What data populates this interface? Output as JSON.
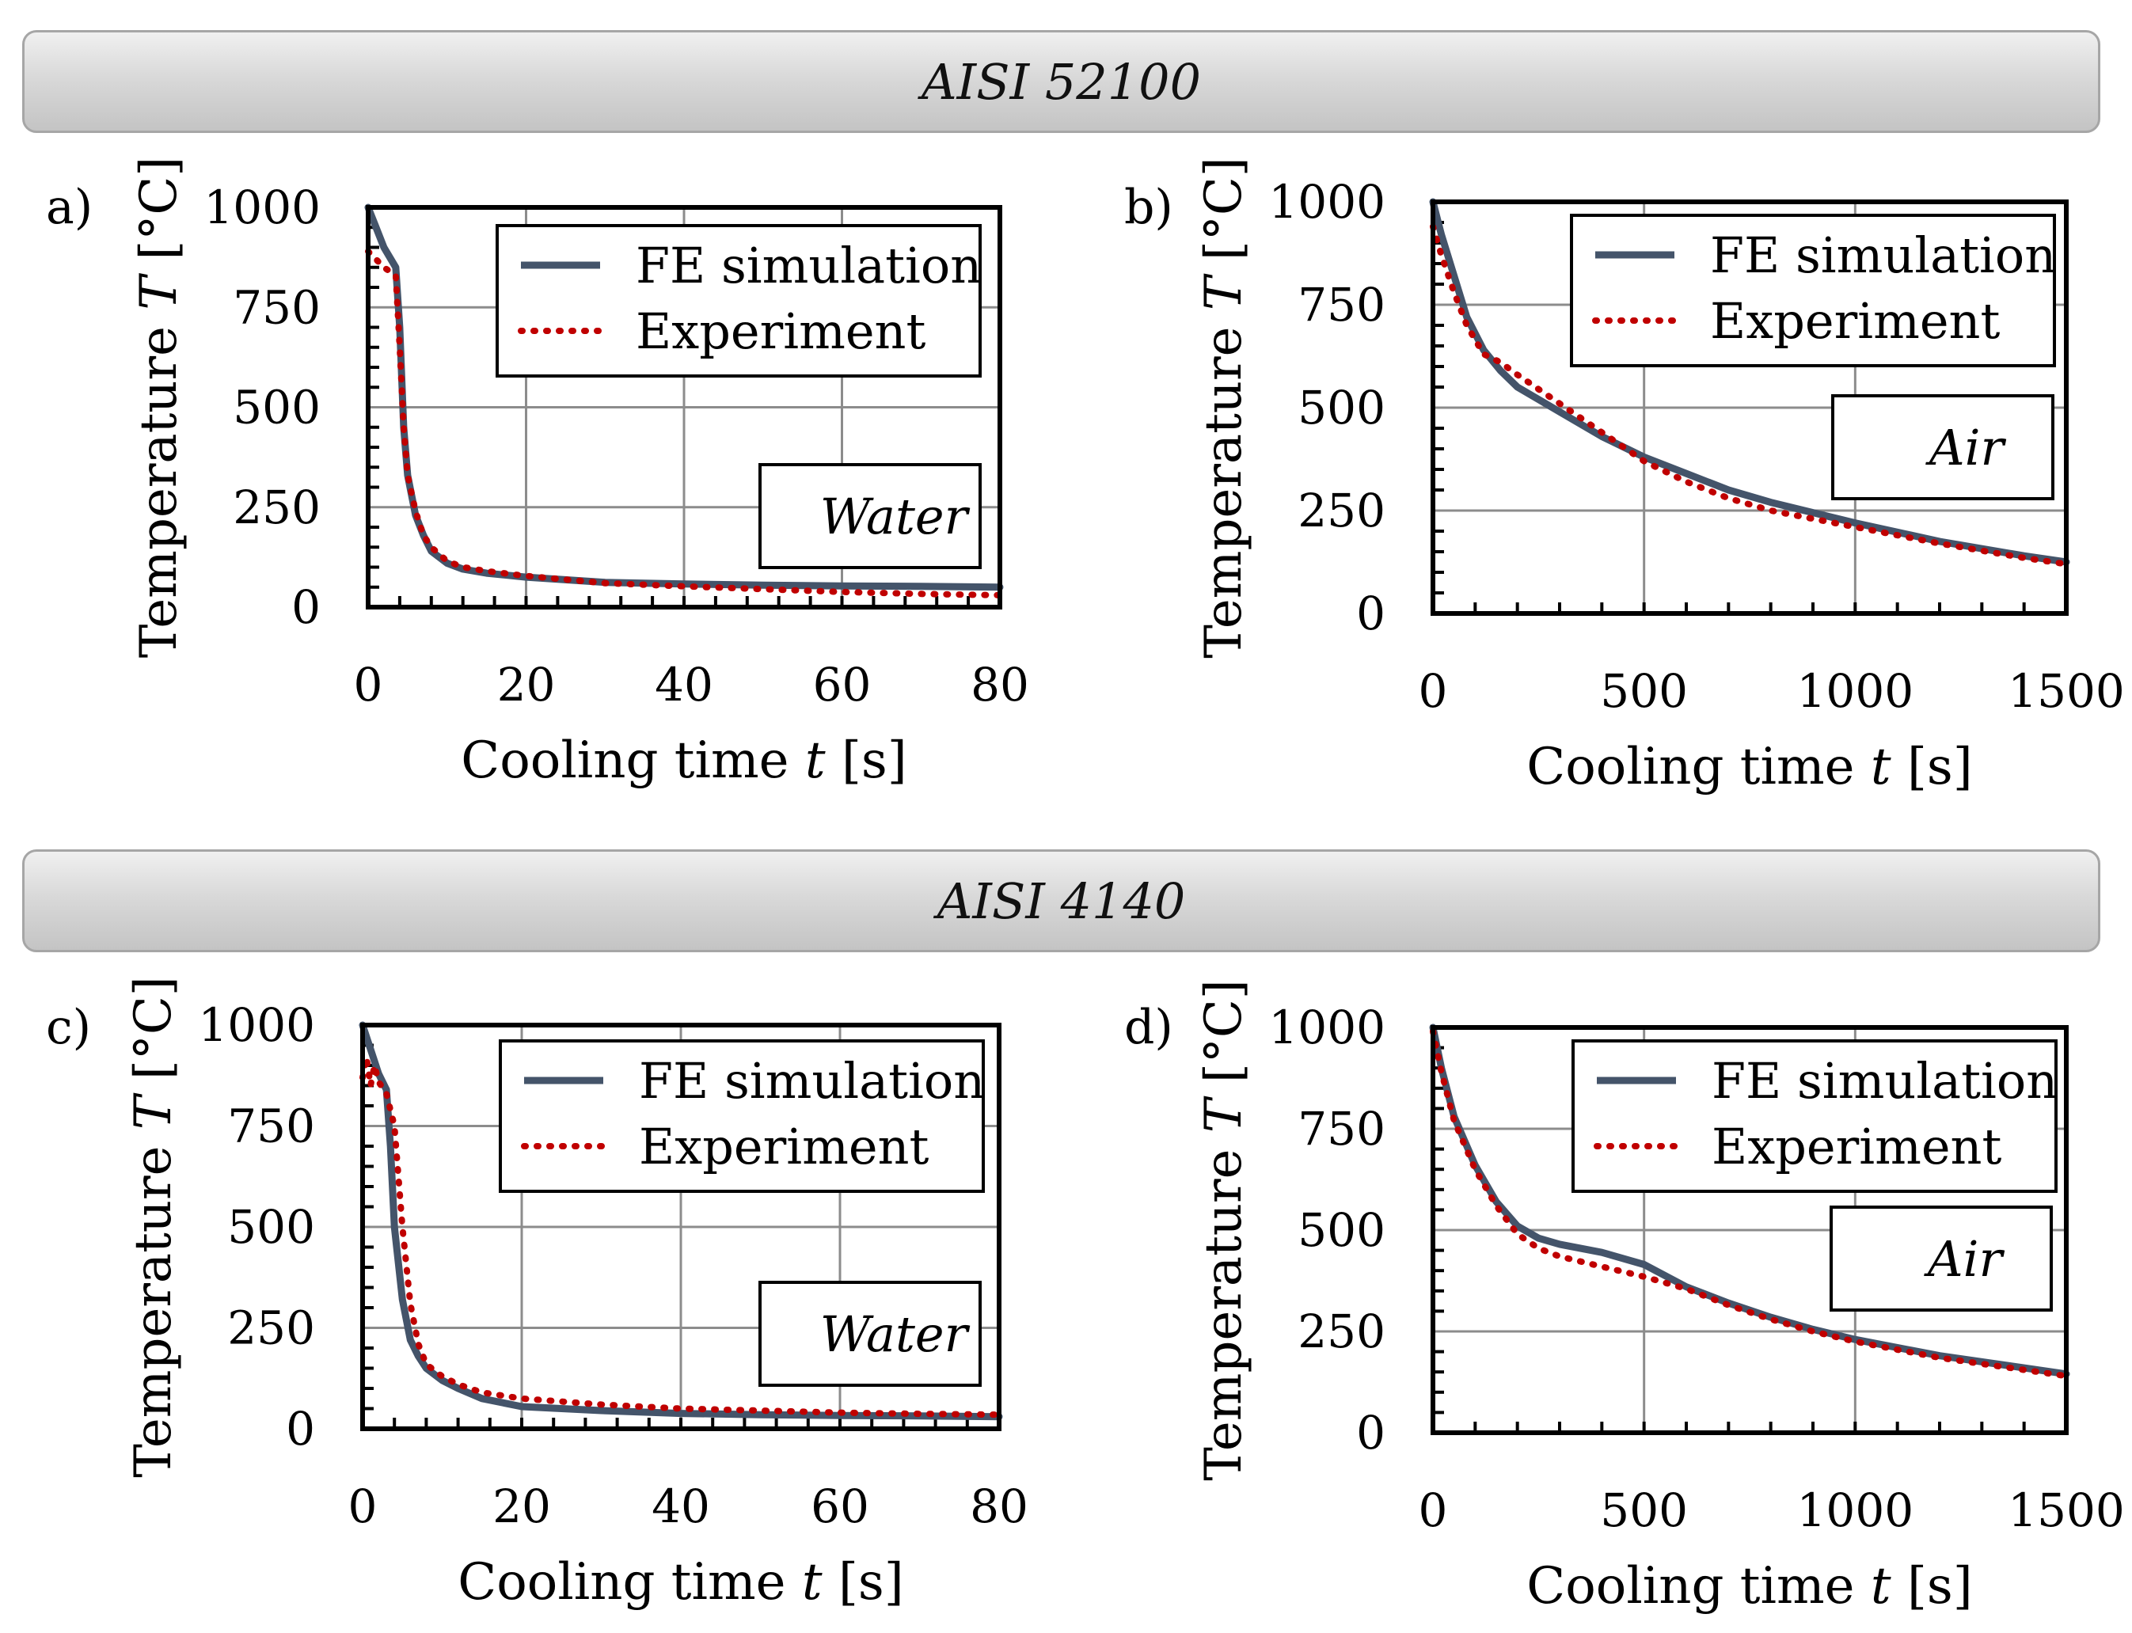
{
  "banners": {
    "top": "AISI 52100",
    "bottom": "AISI 4140"
  },
  "legend": {
    "sim": "FE simulation",
    "exp": "Experiment"
  },
  "colors": {
    "simulation": "#44546a",
    "experiment": "#c00000",
    "grid": "#8c8c8c"
  },
  "chart_data": [
    {
      "panel_label": "a)",
      "type": "line",
      "medium": "Water",
      "xlabel": "Cooling time t [s]",
      "ylabel": "Temperature T [°C]",
      "xlim": [
        0,
        80
      ],
      "ylim": [
        0,
        1000
      ],
      "xticks": [
        0,
        20,
        40,
        60,
        80
      ],
      "yticks": [
        0,
        250,
        500,
        750,
        1000
      ],
      "grid": true,
      "legend_position": "top-right",
      "series": [
        {
          "name": "FE simulation",
          "x": [
            0,
            1,
            2,
            3.5,
            4,
            4.5,
            5,
            6,
            7,
            8,
            10,
            12,
            15,
            20,
            30,
            40,
            50,
            60,
            70,
            80
          ],
          "y": [
            1000,
            950,
            900,
            850,
            700,
            450,
            330,
            230,
            180,
            140,
            110,
            95,
            85,
            75,
            62,
            58,
            55,
            53,
            52,
            50
          ]
        },
        {
          "name": "Experiment",
          "x": [
            0,
            1,
            2,
            3.5,
            4,
            4.5,
            5,
            6,
            7,
            8,
            10,
            12,
            15,
            20,
            30,
            40,
            50,
            60,
            70,
            80
          ],
          "y": [
            890,
            870,
            850,
            830,
            650,
            450,
            330,
            240,
            180,
            150,
            115,
            100,
            90,
            78,
            60,
            52,
            45,
            38,
            33,
            30
          ]
        }
      ]
    },
    {
      "panel_label": "b)",
      "type": "line",
      "medium": "Air",
      "xlabel": "Cooling time t [s]",
      "ylabel": "Temperature T [°C]",
      "xlim": [
        0,
        1500
      ],
      "ylim": [
        0,
        1000
      ],
      "xticks": [
        0,
        500,
        1000,
        1500
      ],
      "yticks": [
        0,
        250,
        500,
        750,
        1000
      ],
      "grid": true,
      "legend_position": "top-right",
      "series": [
        {
          "name": "FE simulation",
          "x": [
            0,
            20,
            50,
            80,
            120,
            160,
            200,
            300,
            400,
            500,
            600,
            700,
            800,
            900,
            1000,
            1200,
            1400,
            1500
          ],
          "y": [
            1000,
            920,
            820,
            720,
            640,
            590,
            550,
            490,
            430,
            380,
            340,
            300,
            270,
            245,
            220,
            175,
            140,
            125
          ]
        },
        {
          "name": "Experiment",
          "x": [
            0,
            20,
            50,
            80,
            120,
            160,
            200,
            300,
            400,
            500,
            600,
            700,
            800,
            900,
            1000,
            1200,
            1400,
            1500
          ],
          "y": [
            940,
            870,
            780,
            700,
            630,
            610,
            580,
            510,
            440,
            370,
            320,
            280,
            250,
            230,
            210,
            170,
            135,
            120
          ]
        }
      ]
    },
    {
      "panel_label": "c)",
      "type": "line",
      "medium": "Water",
      "xlabel": "Cooling time t [s]",
      "ylabel": "Temperature T [°C]",
      "xlim": [
        0,
        80
      ],
      "ylim": [
        0,
        1000
      ],
      "xticks": [
        0,
        20,
        40,
        60,
        80
      ],
      "yticks": [
        0,
        250,
        500,
        750,
        1000
      ],
      "grid": true,
      "legend_position": "top-right",
      "series": [
        {
          "name": "FE simulation",
          "x": [
            0,
            1,
            2,
            3,
            3.5,
            4,
            5,
            6,
            7,
            8,
            10,
            12,
            15,
            20,
            30,
            40,
            50,
            60,
            70,
            80
          ],
          "y": [
            1000,
            940,
            880,
            840,
            700,
            500,
            320,
            220,
            180,
            150,
            120,
            100,
            75,
            55,
            45,
            38,
            35,
            33,
            32,
            30
          ]
        },
        {
          "name": "Experiment",
          "x": [
            0,
            0.5,
            1,
            1.5,
            2,
            3,
            4,
            5,
            6,
            7,
            8,
            10,
            12,
            15,
            20,
            30,
            40,
            50,
            60,
            70,
            80
          ],
          "y": [
            870,
            920,
            850,
            900,
            860,
            830,
            750,
            500,
            310,
            210,
            160,
            130,
            110,
            90,
            75,
            60,
            50,
            45,
            40,
            37,
            35
          ]
        }
      ]
    },
    {
      "panel_label": "d)",
      "type": "line",
      "medium": "Air",
      "xlabel": "Cooling time t [s]",
      "ylabel": "Temperature T [°C]",
      "xlim": [
        0,
        1500
      ],
      "ylim": [
        0,
        1000
      ],
      "xticks": [
        0,
        500,
        1000,
        1500
      ],
      "yticks": [
        0,
        250,
        500,
        750,
        1000
      ],
      "grid": true,
      "legend_position": "top-right",
      "series": [
        {
          "name": "FE simulation",
          "x": [
            0,
            20,
            50,
            100,
            150,
            200,
            250,
            300,
            400,
            500,
            600,
            700,
            800,
            900,
            1000,
            1200,
            1400,
            1500
          ],
          "y": [
            1000,
            900,
            780,
            660,
            570,
            510,
            480,
            465,
            445,
            415,
            360,
            320,
            285,
            255,
            230,
            190,
            160,
            145
          ]
        },
        {
          "name": "Experiment",
          "x": [
            0,
            20,
            50,
            100,
            150,
            200,
            250,
            300,
            400,
            500,
            600,
            700,
            800,
            900,
            1000,
            1200,
            1400,
            1500
          ],
          "y": [
            990,
            890,
            770,
            650,
            560,
            490,
            455,
            435,
            410,
            385,
            355,
            315,
            280,
            250,
            225,
            185,
            155,
            140
          ]
        }
      ]
    }
  ]
}
